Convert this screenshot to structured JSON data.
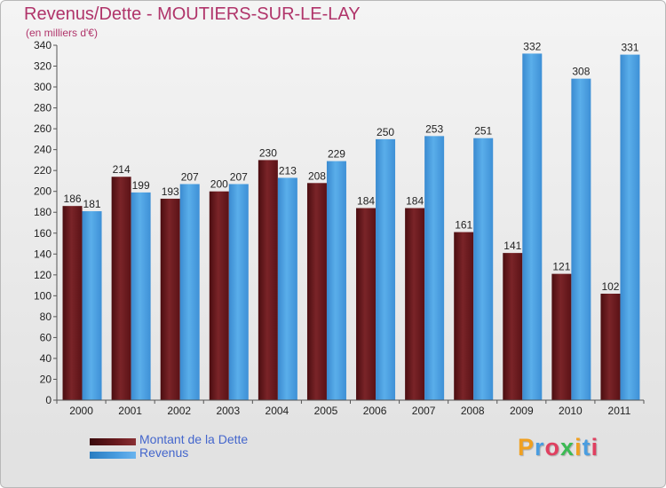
{
  "chart_data": {
    "type": "bar",
    "title": "Revenus/Dette - MOUTIERS-SUR-LE-LAY",
    "subtitle": "(en milliers d'€)",
    "xlabel": "",
    "ylabel": "",
    "categories": [
      "2000",
      "2001",
      "2002",
      "2003",
      "2004",
      "2005",
      "2006",
      "2007",
      "2008",
      "2009",
      "2010",
      "2011"
    ],
    "series": [
      {
        "name": "Montant de la Dette",
        "color": "#6a1a1e",
        "values": [
          186,
          214,
          193,
          200,
          230,
          208,
          184,
          184,
          161,
          141,
          121,
          102
        ]
      },
      {
        "name": "Revenus",
        "color": "#4a9de0",
        "values": [
          181,
          199,
          207,
          207,
          213,
          229,
          250,
          253,
          251,
          332,
          308,
          331
        ]
      }
    ],
    "ylim": [
      0,
      340
    ],
    "ytick_step": 20,
    "yticks": [
      "0",
      "20",
      "40",
      "60",
      "80",
      "100",
      "120",
      "140",
      "160",
      "180",
      "200",
      "220",
      "240",
      "260",
      "280",
      "300",
      "320",
      "340"
    ],
    "data_labels": true,
    "grid": false,
    "legend_position": "bottom-left"
  },
  "logo": {
    "text": "Proxiti"
  }
}
